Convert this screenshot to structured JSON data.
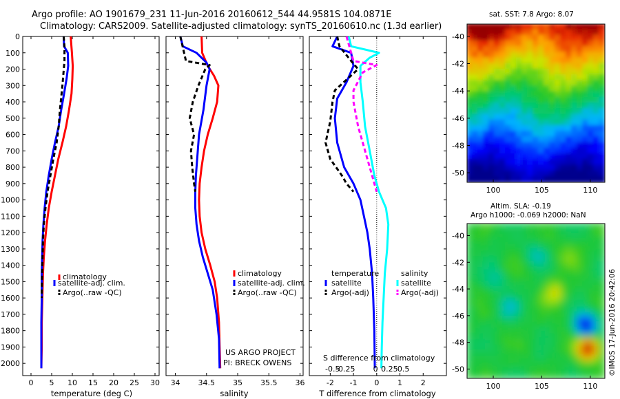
{
  "title": {
    "line1": "Argo profile: AO 1901679_231 11-Jun-2016 20160612_544 44.9581S 104.0871E",
    "line2": "Climatology: CARS2009. Satellite-adjusted climatology: synTS_20160610.nc (1.3d earlier)"
  },
  "footer": {
    "project": "US ARGO PROJECT",
    "pi": "PI: BRECK OWENS",
    "imos": "©IMOS 17-Jun-2016 20:42:06"
  },
  "colors": {
    "climatology": "#ff0000",
    "satellite": "#0000ff",
    "argo": "#000000",
    "sat_salinity": "#00ffff",
    "argo_salinity_adj": "#ff00ff"
  },
  "maps": {
    "sst": {
      "title": "sat. SST: 7.8 Argo: 8.07",
      "xticks": [
        "100",
        "105",
        "110"
      ],
      "yticks": [
        "-40",
        "-42",
        "-44",
        "-46",
        "-48",
        "-50"
      ]
    },
    "sla": {
      "title1": "Altim. SLA: -0.19",
      "title2": "Argo h1000: -0.069 h2000: NaN",
      "xticks": [
        "100",
        "105",
        "110"
      ],
      "yticks": [
        "-40",
        "-42",
        "-44",
        "-46",
        "-48",
        "-50"
      ]
    }
  },
  "chart_data": [
    {
      "type": "line",
      "id": "temperature",
      "xlabel": "temperature (deg C)",
      "ylabel": "",
      "xlim": [
        -2,
        31
      ],
      "ylim": [
        0,
        2075
      ],
      "xticks": [
        0,
        5,
        10,
        15,
        20,
        25,
        30
      ],
      "yticks": [
        0,
        100,
        200,
        300,
        400,
        500,
        600,
        700,
        800,
        900,
        1000,
        1100,
        1200,
        1300,
        1400,
        1500,
        1600,
        1700,
        1800,
        1900,
        2000
      ],
      "legend": [
        "climatology",
        "satellite-adj. clim.",
        "Argo(..raw -QC)"
      ],
      "series": [
        {
          "name": "climatology",
          "color": "#ff0000",
          "dash": false,
          "x": [
            9.6,
            9.9,
            10.1,
            10.0,
            9.8,
            9.2,
            8.5,
            7.6,
            6.6,
            5.8,
            5.0,
            4.3,
            3.8,
            3.4,
            3.1,
            2.9,
            2.8,
            2.7,
            2.6,
            2.6,
            2.5
          ],
          "y": [
            0,
            100,
            180,
            260,
            350,
            450,
            550,
            650,
            750,
            850,
            950,
            1050,
            1150,
            1250,
            1350,
            1450,
            1550,
            1650,
            1750,
            1900,
            2030
          ]
        },
        {
          "name": "satellite-adj. clim.",
          "color": "#0000ff",
          "dash": false,
          "x": [
            7.9,
            8.0,
            8.9,
            9.0,
            8.6,
            8.0,
            7.3,
            6.7,
            5.8,
            5.0,
            4.3,
            3.7,
            3.3,
            3.0,
            2.8,
            2.7,
            2.6,
            2.6,
            2.5,
            2.5,
            2.5
          ],
          "y": [
            0,
            60,
            100,
            180,
            260,
            350,
            450,
            550,
            650,
            750,
            850,
            950,
            1050,
            1150,
            1250,
            1350,
            1450,
            1600,
            1750,
            1900,
            2030
          ]
        },
        {
          "name": "Argo(..raw -QC)",
          "color": "#000000",
          "dash": true,
          "x": [
            7.9,
            8.1,
            8.1,
            7.6,
            7.0,
            6.7,
            6.2,
            5.4,
            4.7,
            4.0,
            3.5,
            3.1,
            2.9,
            2.8,
            2.7,
            2.6,
            2.6
          ],
          "y": [
            0,
            60,
            150,
            300,
            450,
            550,
            650,
            750,
            850,
            950,
            1050,
            1150,
            1250,
            1350,
            1450,
            1550,
            1600
          ]
        }
      ]
    },
    {
      "type": "line",
      "id": "salinity",
      "xlabel": "salinity",
      "ylabel": "",
      "xlim": [
        33.85,
        36.05
      ],
      "ylim": [
        0,
        2075
      ],
      "xticks": [
        34,
        34.5,
        35,
        35.5,
        36
      ],
      "legend": [
        "climatology",
        "satellite-adj. clim.",
        "Argo(..raw -QC)"
      ],
      "series": [
        {
          "name": "climatology",
          "color": "#ff0000",
          "dash": false,
          "x": [
            34.42,
            34.43,
            34.52,
            34.62,
            34.69,
            34.67,
            34.6,
            34.52,
            34.46,
            34.42,
            34.39,
            34.38,
            34.39,
            34.42,
            34.48,
            34.56,
            34.63,
            34.67,
            34.7,
            34.71,
            34.72
          ],
          "y": [
            0,
            100,
            180,
            240,
            300,
            400,
            500,
            600,
            700,
            800,
            900,
            1000,
            1100,
            1200,
            1300,
            1400,
            1500,
            1600,
            1750,
            1900,
            2030
          ]
        },
        {
          "name": "satellite-adj. clim.",
          "color": "#0000ff",
          "dash": false,
          "x": [
            34.08,
            34.12,
            34.34,
            34.5,
            34.55,
            34.5,
            34.45,
            34.38,
            34.35,
            34.33,
            34.32,
            34.32,
            34.34,
            34.38,
            34.44,
            34.52,
            34.6,
            34.66,
            34.7,
            34.71
          ],
          "y": [
            0,
            60,
            100,
            160,
            200,
            300,
            450,
            600,
            750,
            850,
            950,
            1050,
            1150,
            1250,
            1350,
            1450,
            1550,
            1700,
            1850,
            2030
          ]
        },
        {
          "name": "Argo(..raw -QC)",
          "color": "#000000",
          "dash": true,
          "x": [
            34.08,
            34.17,
            34.55,
            34.48,
            34.37,
            34.28,
            34.23,
            34.3,
            34.25,
            34.27,
            34.3,
            34.32
          ],
          "y": [
            0,
            150,
            175,
            200,
            300,
            400,
            500,
            600,
            700,
            800,
            900,
            950
          ]
        }
      ]
    },
    {
      "type": "line",
      "id": "differences",
      "xlabel": "T difference from climatology",
      "title_bottom": "S difference from climatology",
      "xlim": [
        -2.9,
        3.0
      ],
      "ylim": [
        0,
        2075
      ],
      "xticks_T": [
        -2,
        -1,
        0,
        1,
        2
      ],
      "xticks_S": [
        "-0.5",
        "-0.25",
        "0",
        "0.25",
        "0.5"
      ],
      "legend_headers": [
        "temperature",
        "salinity"
      ],
      "legend": [
        "satellite",
        "Argo(-adj)",
        "satellite",
        "Argo(-adj)"
      ],
      "series": [
        {
          "name": "temperature satellite",
          "color": "#0000ff",
          "dash": false,
          "x": [
            -1.7,
            -1.9,
            -1.1,
            -1.0,
            -1.3,
            -1.7,
            -1.8,
            -1.7,
            -1.4,
            -1.0,
            -0.7,
            -0.55,
            -0.4,
            -0.3,
            -0.2,
            -0.15,
            -0.1,
            -0.08
          ],
          "y": [
            0,
            60,
            100,
            180,
            280,
            380,
            500,
            650,
            800,
            900,
            1000,
            1100,
            1200,
            1300,
            1450,
            1600,
            1800,
            2030
          ]
        },
        {
          "name": "temperature Argo(-adj)",
          "color": "#000000",
          "dash": true,
          "x": [
            -1.7,
            -1.6,
            -1.1,
            -0.8,
            -1.8,
            -1.9,
            -2.0,
            -2.2,
            -2.0,
            -1.5,
            -1.3,
            -1.0
          ],
          "y": [
            0,
            60,
            150,
            200,
            330,
            400,
            520,
            650,
            750,
            850,
            900,
            950
          ]
        },
        {
          "name": "salinity satellite",
          "color": "#00ffff",
          "dash": false,
          "x": [
            -1.2,
            -1.1,
            -0.5,
            0.1,
            -0.3,
            -0.7,
            -0.7,
            -0.6,
            -0.5,
            -0.3,
            -0.1,
            0.1,
            0.4,
            0.5,
            0.45,
            0.35,
            0.3,
            0.25,
            0.22,
            0.2
          ],
          "y": [
            0,
            60,
            80,
            100,
            130,
            180,
            280,
            400,
            550,
            700,
            850,
            950,
            1050,
            1150,
            1300,
            1450,
            1600,
            1750,
            1900,
            2030
          ]
        },
        {
          "name": "salinity Argo(-adj)",
          "color": "#ff00ff",
          "dash": true,
          "x": [
            -1.3,
            -1.0,
            0.0,
            -0.6,
            -1.0,
            -1.0,
            -0.8,
            -0.6,
            -0.4,
            -0.2,
            -0.1,
            0.0
          ],
          "y": [
            0,
            150,
            175,
            220,
            330,
            400,
            550,
            650,
            750,
            850,
            900,
            950
          ]
        }
      ]
    }
  ]
}
